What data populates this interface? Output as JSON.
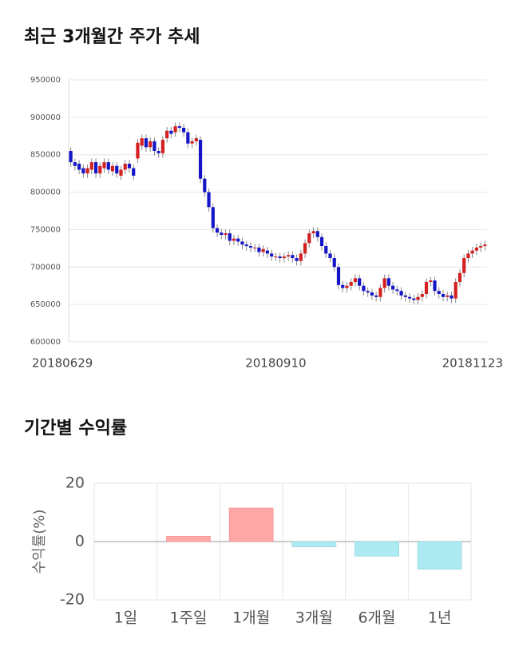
{
  "chart_data": [
    {
      "type": "candlestick",
      "title": "최근 3개월간 주가 추세",
      "categories": [
        "20180629",
        null,
        null,
        null,
        null,
        null,
        null,
        null,
        null,
        null,
        null,
        null,
        null,
        null,
        null,
        null,
        null,
        null,
        null,
        null,
        null,
        null,
        null,
        null,
        null,
        null,
        null,
        null,
        null,
        null,
        null,
        null,
        null,
        null,
        null,
        null,
        null,
        null,
        null,
        null,
        null,
        null,
        null,
        null,
        null,
        null,
        null,
        null,
        null,
        "20180910",
        null,
        null,
        null,
        null,
        null,
        null,
        null,
        null,
        null,
        null,
        null,
        null,
        null,
        null,
        null,
        null,
        null,
        null,
        null,
        null,
        null,
        null,
        null,
        null,
        null,
        null,
        null,
        null,
        null,
        null,
        null,
        null,
        null,
        null,
        null,
        null,
        null,
        null,
        null,
        null,
        null,
        null,
        null,
        null,
        null,
        null,
        null,
        null,
        null,
        "20181123"
      ],
      "open": [
        855000,
        840000,
        838000,
        832000,
        825000,
        830000,
        840000,
        825000,
        832000,
        840000,
        828000,
        835000,
        822000,
        830000,
        838000,
        832000,
        845000,
        862000,
        872000,
        860000,
        868000,
        855000,
        852000,
        872000,
        882000,
        880000,
        888000,
        886000,
        880000,
        865000,
        868000,
        870000,
        818000,
        800000,
        780000,
        752000,
        746000,
        743000,
        745000,
        735000,
        738000,
        734000,
        730000,
        728000,
        726000,
        726000,
        720000,
        722000,
        718000,
        714000,
        714000,
        712000,
        714000,
        716000,
        712000,
        708000,
        718000,
        732000,
        745000,
        748000,
        740000,
        728000,
        718000,
        712000,
        700000,
        676000,
        672000,
        675000,
        680000,
        685000,
        675000,
        668000,
        666000,
        662000,
        660000,
        672000,
        685000,
        675000,
        670000,
        668000,
        662000,
        660000,
        658000,
        656000,
        660000,
        664000,
        680000,
        682000,
        668000,
        664000,
        660000,
        662000,
        658000,
        680000,
        692000,
        712000,
        718000,
        722000,
        726000,
        728000
      ],
      "high": [
        860000,
        845000,
        843000,
        837000,
        837000,
        845000,
        845000,
        840000,
        845000,
        845000,
        840000,
        840000,
        835000,
        843000,
        843000,
        837000,
        871000,
        877000,
        877000,
        873000,
        873000,
        860000,
        875000,
        887000,
        887000,
        893000,
        893000,
        891000,
        885000,
        873000,
        877000,
        875000,
        823000,
        805000,
        785000,
        757000,
        751000,
        750000,
        750000,
        743000,
        743000,
        739000,
        735000,
        733000,
        731000,
        731000,
        729000,
        727000,
        723000,
        719000,
        719000,
        719000,
        721000,
        721000,
        717000,
        723000,
        737000,
        750000,
        753000,
        753000,
        745000,
        733000,
        723000,
        717000,
        705000,
        681000,
        680000,
        685000,
        690000,
        690000,
        680000,
        673000,
        671000,
        667000,
        677000,
        690000,
        690000,
        680000,
        675000,
        673000,
        667000,
        665000,
        663000,
        665000,
        669000,
        685000,
        687000,
        687000,
        673000,
        669000,
        667000,
        667000,
        685000,
        697000,
        717000,
        723000,
        727000,
        731000,
        733000,
        735000
      ],
      "low": [
        834000,
        829000,
        824000,
        819000,
        819000,
        824000,
        819000,
        819000,
        826000,
        824000,
        822000,
        819000,
        816000,
        824000,
        826000,
        816000,
        839000,
        856000,
        854000,
        854000,
        849000,
        846000,
        846000,
        866000,
        872000,
        874000,
        880000,
        874000,
        859000,
        859000,
        862000,
        812000,
        794000,
        774000,
        746000,
        740000,
        737000,
        737000,
        729000,
        729000,
        728000,
        724000,
        722000,
        720000,
        720000,
        714000,
        714000,
        712000,
        708000,
        708000,
        706000,
        706000,
        708000,
        706000,
        702000,
        702000,
        712000,
        726000,
        739000,
        734000,
        722000,
        712000,
        706000,
        694000,
        670000,
        666000,
        666000,
        669000,
        674000,
        669000,
        662000,
        660000,
        656000,
        654000,
        654000,
        666000,
        669000,
        664000,
        662000,
        656000,
        654000,
        652000,
        650000,
        650000,
        654000,
        658000,
        674000,
        662000,
        658000,
        654000,
        654000,
        652000,
        652000,
        674000,
        686000,
        706000,
        712000,
        716000,
        720000,
        722000
      ],
      "close": [
        840000,
        835000,
        830000,
        825000,
        832000,
        840000,
        825000,
        835000,
        840000,
        830000,
        835000,
        825000,
        830000,
        838000,
        832000,
        822000,
        866000,
        872000,
        860000,
        868000,
        855000,
        852000,
        870000,
        882000,
        878000,
        888000,
        886000,
        880000,
        865000,
        868000,
        872000,
        818000,
        800000,
        780000,
        752000,
        746000,
        743000,
        745000,
        735000,
        738000,
        734000,
        730000,
        728000,
        726000,
        726000,
        720000,
        724000,
        718000,
        714000,
        714000,
        712000,
        714000,
        716000,
        712000,
        708000,
        718000,
        732000,
        745000,
        748000,
        740000,
        728000,
        718000,
        712000,
        700000,
        676000,
        672000,
        675000,
        680000,
        685000,
        675000,
        668000,
        666000,
        662000,
        660000,
        672000,
        685000,
        675000,
        670000,
        668000,
        662000,
        660000,
        658000,
        656000,
        660000,
        664000,
        680000,
        682000,
        668000,
        664000,
        660000,
        662000,
        658000,
        680000,
        692000,
        712000,
        718000,
        722000,
        726000,
        728000,
        730000
      ],
      "up_color": "#d42020",
      "down_color": "#1515c8",
      "ylim": [
        600000,
        950000
      ],
      "yticks": [
        600000,
        650000,
        700000,
        750000,
        800000,
        850000,
        900000,
        950000
      ],
      "grid": true
    },
    {
      "type": "bar",
      "title": "기간별 수익률",
      "y_label": "수익률(%)",
      "categories": [
        "1일",
        "1주일",
        "1개월",
        "3개월",
        "6개월",
        "1년"
      ],
      "values": [
        0,
        1.8,
        11.5,
        -1.8,
        -5,
        -9.5
      ],
      "positive_color": "#ffa7a7",
      "negative_color": "#aeeaf2",
      "ylim": [
        -20,
        20
      ],
      "yticks": [
        -20,
        0,
        20
      ],
      "grid": true
    }
  ]
}
